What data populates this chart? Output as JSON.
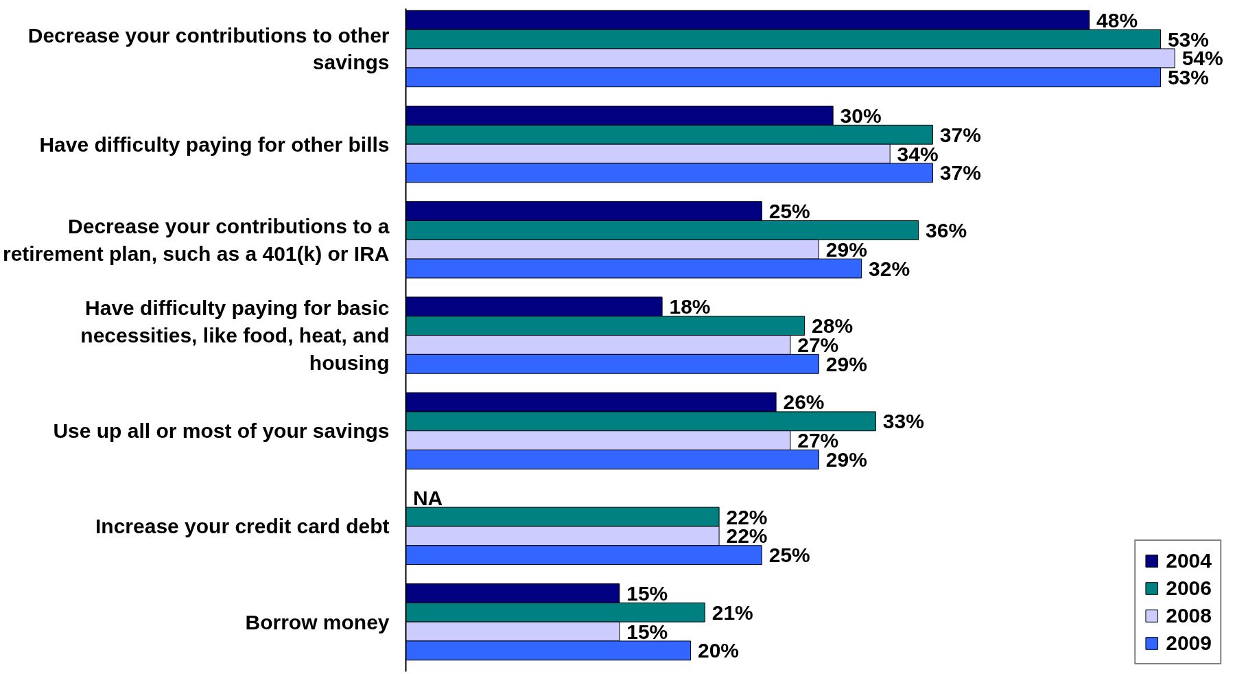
{
  "chart_data": {
    "type": "bar",
    "orientation": "horizontal",
    "categories": [
      "Decrease your contributions to other savings",
      "Have difficulty paying for other bills",
      "Decrease your contributions to a retirement plan, such as a 401(k) or IRA",
      "Have difficulty paying for basic necessities, like food, heat, and housing",
      "Use up all or most of your savings",
      "Increase your credit card debt",
      "Borrow money"
    ],
    "series": [
      {
        "name": "2004",
        "color": "#000080",
        "values": [
          48,
          30,
          25,
          18,
          26,
          null,
          15
        ],
        "value_labels": [
          "48%",
          "30%",
          "25%",
          "18%",
          "26%",
          "NA",
          "15%"
        ]
      },
      {
        "name": "2006",
        "color": "#008080",
        "values": [
          53,
          37,
          36,
          28,
          33,
          22,
          21
        ],
        "value_labels": [
          "53%",
          "37%",
          "36%",
          "28%",
          "33%",
          "22%",
          "21%"
        ]
      },
      {
        "name": "2008",
        "color": "#ccccff",
        "values": [
          54,
          34,
          29,
          27,
          27,
          22,
          15
        ],
        "value_labels": [
          "54%",
          "34%",
          "29%",
          "27%",
          "27%",
          "22%",
          "15%"
        ]
      },
      {
        "name": "2009",
        "color": "#3366ff",
        "values": [
          53,
          37,
          32,
          29,
          29,
          25,
          20
        ],
        "value_labels": [
          "53%",
          "37%",
          "32%",
          "29%",
          "29%",
          "25%",
          "20%"
        ]
      }
    ],
    "legend": "bottom right",
    "grid": false
  }
}
